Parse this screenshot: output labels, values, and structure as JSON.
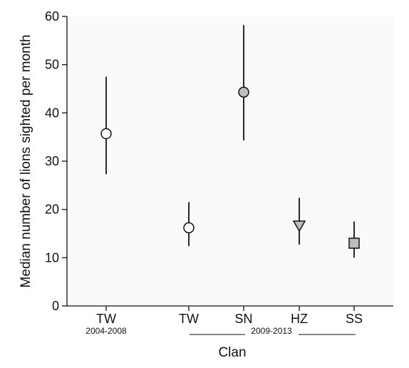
{
  "chart_data": {
    "type": "scatter",
    "title": "",
    "xlabel": "Clan",
    "ylabel": "Median number of lions sighted per month",
    "ylim": [
      0,
      60
    ],
    "yticks": [
      0,
      10,
      20,
      30,
      40,
      50,
      60
    ],
    "grid": false,
    "categories": [
      "TW",
      "TW",
      "SN",
      "HZ",
      "SS"
    ],
    "periods": [
      {
        "label": "2004-2008",
        "categories": [
          0
        ]
      },
      {
        "label": "2009-2013",
        "categories": [
          1,
          2,
          3,
          4
        ]
      }
    ],
    "points": [
      {
        "category": "TW",
        "period": "2004-2008",
        "median": 35.7,
        "lower": 27.3,
        "upper": 47.5,
        "marker": "circle",
        "fill": "#ffffff"
      },
      {
        "category": "TW",
        "period": "2009-2013",
        "median": 16.2,
        "lower": 12.4,
        "upper": 21.5,
        "marker": "circle",
        "fill": "#ffffff"
      },
      {
        "category": "SN",
        "period": "2009-2013",
        "median": 44.3,
        "lower": 34.3,
        "upper": 58.2,
        "marker": "circle",
        "fill": "#bdbdbd"
      },
      {
        "category": "HZ",
        "period": "2009-2013",
        "median": 16.7,
        "lower": 12.7,
        "upper": 22.4,
        "marker": "triangle-down",
        "fill": "#bdbdbd"
      },
      {
        "category": "SS",
        "period": "2009-2013",
        "median": 13.0,
        "lower": 10.0,
        "upper": 17.5,
        "marker": "square",
        "fill": "#bdbdbd"
      }
    ]
  }
}
